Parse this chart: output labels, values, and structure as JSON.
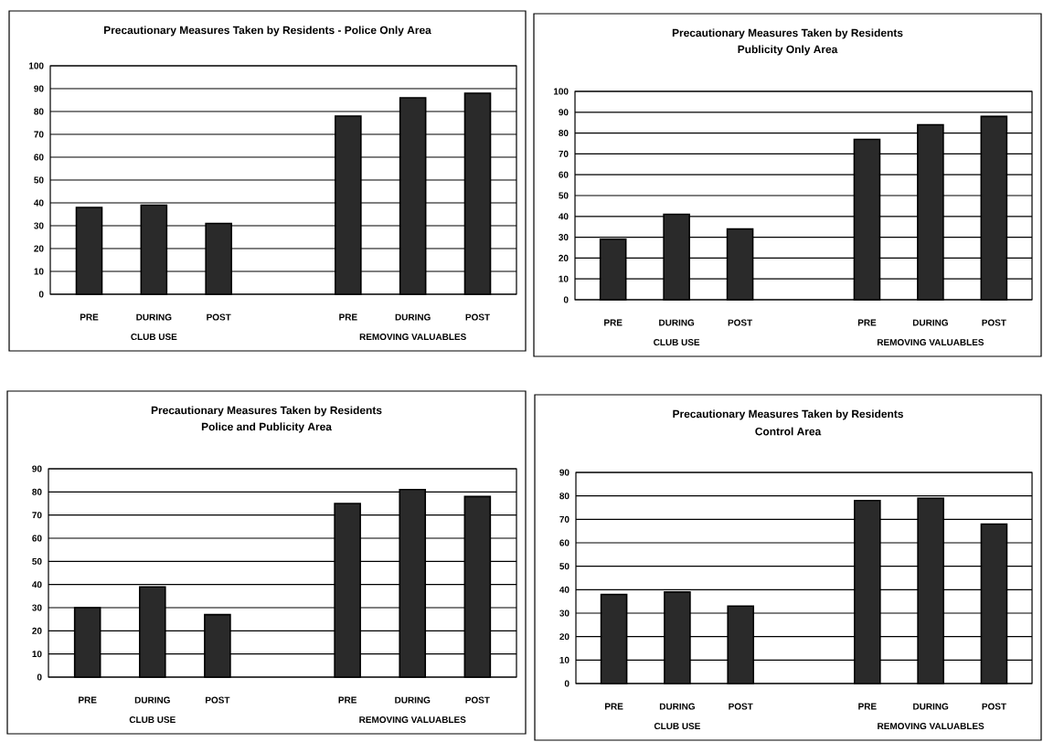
{
  "chart_data": [
    {
      "type": "bar",
      "title": "Precautionary Measures Taken by Residents - Police Only Area",
      "categories": [
        "PRE",
        "DURING",
        "POST",
        null,
        "PRE",
        "DURING",
        "POST"
      ],
      "values": [
        38,
        39,
        31,
        null,
        78,
        86,
        88
      ],
      "color": "#2a2a2a",
      "ylim": [
        0,
        100
      ],
      "yticks": [
        0,
        10,
        20,
        30,
        40,
        50,
        60,
        70,
        80,
        90,
        100
      ],
      "grid": "y",
      "annotations": [
        "CLUB USE",
        "REMOVING VALUABLES"
      ]
    },
    {
      "type": "bar",
      "title": "Precautionary Measures Taken by Residents",
      "subtitle": "Publicity Only Area",
      "categories": [
        "PRE",
        "DURING",
        "POST",
        null,
        "PRE",
        "DURING",
        "POST"
      ],
      "values": [
        29,
        41,
        34,
        null,
        77,
        84,
        88
      ],
      "color": "#2a2a2a",
      "ylim": [
        0,
        100
      ],
      "yticks": [
        0,
        10,
        20,
        30,
        40,
        50,
        60,
        70,
        80,
        90,
        100
      ],
      "grid": "y",
      "annotations": [
        "CLUB USE",
        "REMOVING VALUABLES"
      ]
    },
    {
      "type": "bar",
      "title": "Precautionary Measures Taken by Residents",
      "subtitle": "Police and Publicity  Area",
      "categories": [
        "PRE",
        "DURING",
        "POST",
        null,
        "PRE",
        "DURING",
        "POST"
      ],
      "values": [
        30,
        39,
        27,
        null,
        75,
        81,
        78
      ],
      "color": "#2a2a2a",
      "ylim": [
        0,
        90
      ],
      "yticks": [
        0,
        10,
        20,
        30,
        40,
        50,
        60,
        70,
        80,
        90
      ],
      "grid": "y",
      "annotations": [
        "CLUB USE",
        "REMOVING VALUABLES"
      ]
    },
    {
      "type": "bar",
      "title": "Precautionary Measures Taken by Residents",
      "subtitle": "Control  Area",
      "categories": [
        "PRE",
        "DURING",
        "POST",
        null,
        "PRE",
        "DURING",
        "POST"
      ],
      "values": [
        38,
        39,
        33,
        null,
        78,
        79,
        68
      ],
      "color": "#2a2a2a",
      "ylim": [
        0,
        90
      ],
      "yticks": [
        0,
        10,
        20,
        30,
        40,
        50,
        60,
        70,
        80,
        90
      ],
      "grid": "y",
      "annotations": [
        "CLUB USE",
        "REMOVING VALUABLES"
      ]
    }
  ]
}
